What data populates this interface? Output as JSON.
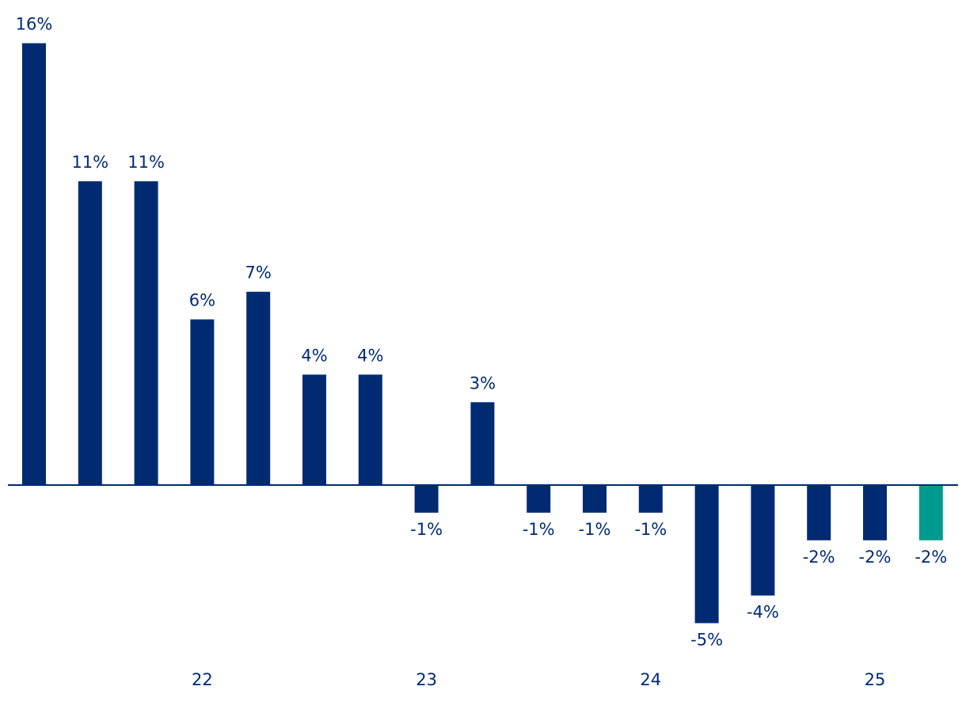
{
  "chart_data": {
    "type": "bar",
    "title": "",
    "xlabel": "",
    "ylabel": "",
    "bars": [
      {
        "value": 16,
        "label": "16%"
      },
      {
        "value": 11,
        "label": "11%"
      },
      {
        "value": 11,
        "label": "11%"
      },
      {
        "value": 6,
        "label": "6%"
      },
      {
        "value": 7,
        "label": "7%"
      },
      {
        "value": 4,
        "label": "4%"
      },
      {
        "value": 4,
        "label": "4%"
      },
      {
        "value": -1,
        "label": "-1%"
      },
      {
        "value": 3,
        "label": "3%"
      },
      {
        "value": -1,
        "label": "-1%"
      },
      {
        "value": -1,
        "label": "-1%"
      },
      {
        "value": -1,
        "label": "-1%"
      },
      {
        "value": -5,
        "label": "-5%"
      },
      {
        "value": -4,
        "label": "-4%"
      },
      {
        "value": -2,
        "label": "-2%"
      },
      {
        "value": -2,
        "label": "-2%"
      },
      {
        "value": -2,
        "label": "-2%",
        "highlight": true
      }
    ],
    "year_labels": [
      {
        "text": "22",
        "bar_index": 3
      },
      {
        "text": "23",
        "bar_index": 7
      },
      {
        "text": "24",
        "bar_index": 11
      },
      {
        "text": "25",
        "bar_index": 15
      }
    ],
    "ylim": [
      -5,
      16
    ],
    "grid": false,
    "colors": {
      "bar": "#002b73",
      "highlight": "#009b8f",
      "label_text": "#002b73",
      "axis_line": "#002b73"
    }
  }
}
